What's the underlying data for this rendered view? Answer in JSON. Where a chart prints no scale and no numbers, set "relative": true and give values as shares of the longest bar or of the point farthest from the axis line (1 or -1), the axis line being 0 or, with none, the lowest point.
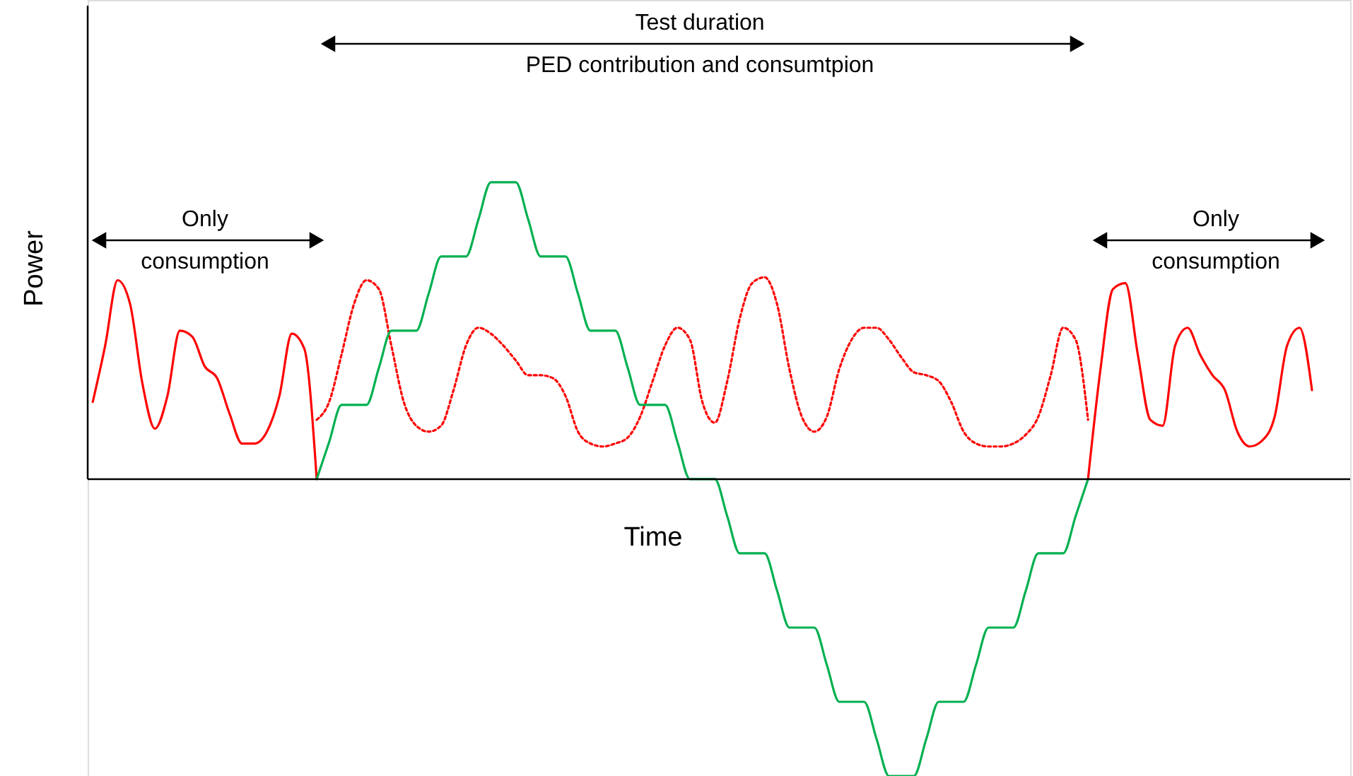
{
  "chart_data": {
    "type": "line",
    "relative": true,
    "xlabel": "Time",
    "ylabel": "Power",
    "annotations": [
      "Test duration",
      "PED contribution and consumtpion",
      "Only\nconsumption",
      "Only\nconsumption"
    ],
    "categories": [
      null,
      null,
      null,
      null,
      null,
      null,
      null,
      null,
      null,
      null,
      null,
      null,
      null,
      null,
      null,
      null,
      null,
      null,
      null,
      null,
      null,
      null,
      null,
      null,
      null,
      null,
      null,
      null,
      null,
      null,
      null,
      null,
      null,
      null,
      null,
      null,
      null,
      null,
      null,
      null,
      null,
      null,
      null,
      null,
      null,
      null,
      null,
      null,
      null,
      null,
      null,
      null,
      null,
      null,
      null,
      null,
      null,
      null,
      null,
      null,
      null,
      null,
      null,
      null,
      null,
      null,
      null,
      null,
      null,
      null,
      null,
      null,
      null,
      null,
      null,
      null,
      null,
      null,
      null,
      null,
      null,
      null,
      null,
      null,
      null,
      null,
      null,
      null,
      null,
      null,
      null,
      null,
      null,
      null,
      null,
      null,
      null,
      null,
      null,
      null,
      null
    ],
    "series": [
      {
        "color": "#ff0000",
        "line_style": "solid",
        "values": [
          0.26,
          0.45,
          0.67,
          0.59,
          0.32,
          0.17,
          0.28,
          0.5,
          0.48,
          0.38,
          0.34,
          0.22,
          0.12,
          0.12,
          0.16,
          0.28,
          0.49,
          0.44,
          0,
          null,
          null,
          null,
          null,
          null,
          null,
          null,
          null,
          null,
          null,
          null,
          null,
          null,
          null,
          null,
          null,
          null,
          null,
          null,
          null,
          null,
          null,
          null,
          null,
          null,
          null,
          null,
          null,
          null,
          null,
          null,
          null,
          null,
          null,
          null,
          null,
          null,
          null,
          null,
          null,
          null,
          null,
          null,
          null,
          null,
          null,
          null,
          null,
          null,
          null,
          null,
          null,
          null,
          null,
          null,
          null,
          null,
          null,
          null,
          null,
          null,
          0,
          0.37,
          0.64,
          0.66,
          0.42,
          0.2,
          0.18,
          0.45,
          0.51,
          0.42,
          0.35,
          0.3,
          0.16,
          0.11,
          0.13,
          0.21,
          0.45,
          0.51,
          0.3,
          null,
          null
        ]
      },
      {
        "color": "#ff0000",
        "line_style": "dotted",
        "values": [
          null,
          null,
          null,
          null,
          null,
          null,
          null,
          null,
          null,
          null,
          null,
          null,
          null,
          null,
          null,
          null,
          null,
          null,
          0.2,
          0.26,
          0.42,
          0.59,
          0.67,
          0.64,
          0.45,
          0.26,
          0.18,
          0.16,
          0.18,
          0.3,
          0.45,
          0.51,
          0.49,
          0.45,
          0.4,
          0.35,
          0.35,
          0.34,
          0.28,
          0.16,
          0.12,
          0.11,
          0.12,
          0.14,
          0.21,
          0.33,
          0.45,
          0.51,
          0.47,
          0.26,
          0.19,
          0.33,
          0.54,
          0.66,
          0.68,
          0.59,
          0.37,
          0.21,
          0.16,
          0.21,
          0.37,
          0.47,
          0.51,
          0.51,
          0.47,
          0.41,
          0.36,
          0.35,
          0.33,
          0.26,
          0.16,
          0.12,
          0.11,
          0.11,
          0.12,
          0.15,
          0.21,
          0.35,
          0.51,
          0.47,
          0.2,
          null,
          null,
          null,
          null,
          null,
          null,
          null,
          null,
          null,
          null,
          null,
          null,
          null,
          null,
          null,
          null,
          null,
          null,
          null,
          null
        ]
      },
      {
        "color": "#00b050",
        "line_style": "solid",
        "values": [
          null,
          null,
          null,
          null,
          null,
          null,
          null,
          null,
          null,
          null,
          null,
          null,
          null,
          null,
          null,
          null,
          null,
          null,
          0,
          0.125,
          0.25,
          0.25,
          0.25,
          0.375,
          0.5,
          0.5,
          0.5,
          0.625,
          0.75,
          0.75,
          0.75,
          0.875,
          1,
          1,
          1,
          0.875,
          0.75,
          0.75,
          0.75,
          0.625,
          0.5,
          0.5,
          0.5,
          0.375,
          0.25,
          0.25,
          0.25,
          0.125,
          0,
          0,
          0,
          -0.125,
          -0.25,
          -0.25,
          -0.25,
          -0.375,
          -0.5,
          -0.5,
          -0.5,
          -0.625,
          -0.75,
          -0.75,
          -0.75,
          -0.875,
          -1,
          -1,
          -1,
          -0.875,
          -0.75,
          -0.75,
          -0.75,
          -0.625,
          -0.5,
          -0.5,
          -0.5,
          -0.375,
          -0.25,
          -0.25,
          -0.25,
          -0.125,
          0,
          null,
          null,
          null,
          null,
          null,
          null,
          null,
          null,
          null,
          null,
          null,
          null,
          null,
          null,
          null,
          null,
          null,
          null,
          null,
          null
        ]
      }
    ]
  }
}
